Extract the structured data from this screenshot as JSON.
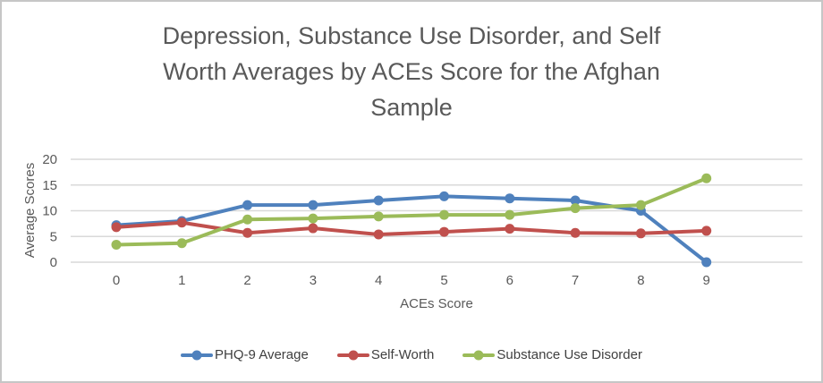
{
  "chart": {
    "title_lines": [
      "Depression, Substance Use Disorder, and Self",
      "Worth Averages by ACEs Score for the Afghan",
      "Sample"
    ]
  },
  "chart_data": {
    "type": "line",
    "title": "Depression, Substance Use Disorder, and Self Worth Averages by ACEs Score for the Afghan Sample",
    "xlabel": "ACEs Score",
    "ylabel": "Average Scores",
    "x": [
      0,
      1,
      2,
      3,
      4,
      5,
      6,
      7,
      8,
      9
    ],
    "y_ticks": [
      0,
      5,
      10,
      15,
      20
    ],
    "ylim": [
      0,
      20
    ],
    "grid": true,
    "legend_position": "bottom",
    "gridline_color": "#d9d9d9",
    "text_color": "#595959",
    "series": [
      {
        "name": "PHQ-9 Average",
        "color": "#4F81BD",
        "values": [
          7.2,
          8.0,
          11.1,
          11.1,
          12.0,
          12.8,
          12.4,
          12.0,
          10.0,
          0.0
        ]
      },
      {
        "name": "Self-Worth",
        "color": "#C0504D",
        "values": [
          6.8,
          7.7,
          5.7,
          6.6,
          5.4,
          5.9,
          6.5,
          5.7,
          5.6,
          6.1
        ]
      },
      {
        "name": "Substance Use Disorder",
        "color": "#9BBB59",
        "values": [
          3.4,
          3.7,
          8.3,
          8.5,
          8.9,
          9.2,
          9.2,
          10.5,
          11.1,
          16.3
        ]
      }
    ]
  }
}
